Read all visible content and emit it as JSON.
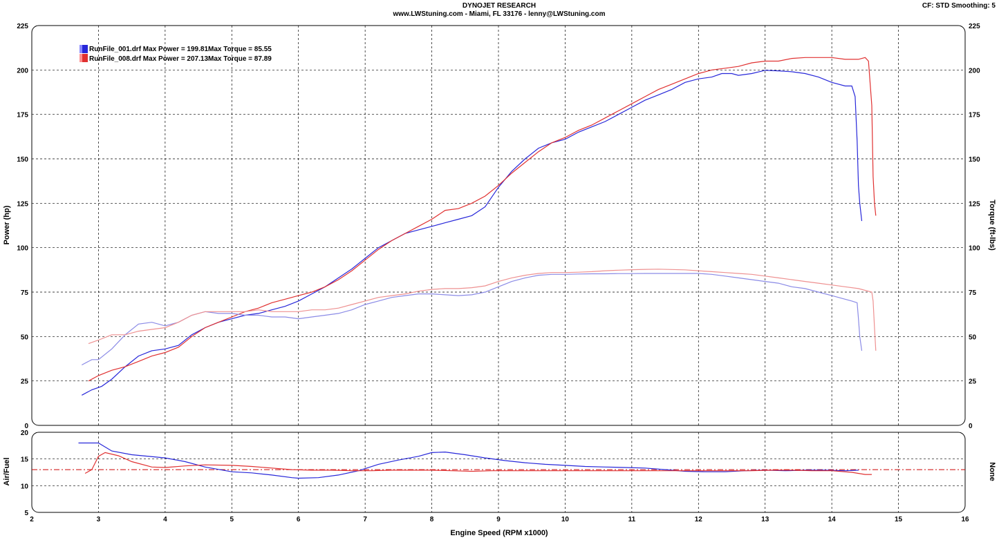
{
  "header": {
    "title": "DYNOJET RESEARCH",
    "subtitle": "www.LWStuning.com - Miami, FL 33176 - lenny@LWStuning.com",
    "settings": "CF: STD  Smoothing: 5"
  },
  "legend": [
    {
      "label": "RunFile_001.drf Max Power = 199.81Max Torque = 85.55",
      "color": "#2626d9"
    },
    {
      "label": "RunFile_008.drf Max Power = 207.13Max Torque = 87.89",
      "color": "#e03030"
    }
  ],
  "chart_data": [
    {
      "type": "line",
      "xlabel": "Engine Speed (RPM x1000)",
      "ylabel": "Power (hp)",
      "y2label": "Torque (ft-lbs)",
      "xlim": [
        2,
        16
      ],
      "ylim": [
        0,
        225
      ],
      "xticks": [
        2,
        3,
        4,
        5,
        6,
        7,
        8,
        9,
        10,
        11,
        12,
        13,
        14,
        15,
        16
      ],
      "yticks": [
        0,
        25,
        50,
        75,
        100,
        125,
        150,
        175,
        200,
        225
      ],
      "grid": true,
      "series": [
        {
          "name": "RunFile_001.drf",
          "measure": "power",
          "color": "#2626d9",
          "x": [
            2.75,
            2.9,
            3.05,
            3.2,
            3.4,
            3.6,
            3.8,
            4.0,
            4.2,
            4.4,
            4.6,
            4.8,
            5.0,
            5.2,
            5.4,
            5.6,
            5.8,
            6.0,
            6.2,
            6.4,
            6.6,
            6.8,
            7.0,
            7.2,
            7.4,
            7.6,
            7.8,
            8.0,
            8.2,
            8.4,
            8.6,
            8.8,
            9.0,
            9.2,
            9.4,
            9.6,
            9.8,
            10.0,
            10.2,
            10.4,
            10.6,
            10.8,
            11.0,
            11.2,
            11.4,
            11.6,
            11.8,
            12.0,
            12.2,
            12.35,
            12.5,
            12.6,
            12.8,
            13.0,
            13.2,
            13.4,
            13.6,
            13.8,
            14.0,
            14.2,
            14.3,
            14.35,
            14.38,
            14.4,
            14.42,
            14.45
          ],
          "values": [
            17,
            20,
            22,
            26,
            33,
            39,
            42,
            43,
            45,
            51,
            55,
            58,
            60,
            62,
            63,
            65,
            67,
            70,
            74,
            78,
            83,
            88,
            94,
            100,
            104,
            108,
            110,
            112,
            114,
            116,
            118,
            123,
            134,
            143,
            150,
            156,
            159,
            161,
            165,
            168,
            171,
            175,
            179,
            183,
            186,
            189,
            193,
            195,
            196,
            198,
            198,
            197,
            198,
            199.8,
            199.5,
            199,
            198,
            196,
            193,
            191,
            191,
            185,
            160,
            135,
            125,
            115
          ]
        },
        {
          "name": "RunFile_008.drf",
          "measure": "power",
          "color": "#e03030",
          "x": [
            2.85,
            3.0,
            3.2,
            3.4,
            3.6,
            3.8,
            4.0,
            4.2,
            4.4,
            4.6,
            4.8,
            5.0,
            5.2,
            5.4,
            5.6,
            5.8,
            6.0,
            6.2,
            6.4,
            6.6,
            6.8,
            7.0,
            7.2,
            7.4,
            7.6,
            7.8,
            8.0,
            8.2,
            8.4,
            8.6,
            8.8,
            9.0,
            9.2,
            9.4,
            9.6,
            9.8,
            10.0,
            10.2,
            10.4,
            10.6,
            10.8,
            11.0,
            11.2,
            11.4,
            11.6,
            11.8,
            12.0,
            12.2,
            12.4,
            12.6,
            12.8,
            13.0,
            13.2,
            13.4,
            13.6,
            13.8,
            14.0,
            14.2,
            14.4,
            14.5,
            14.55,
            14.6,
            14.62,
            14.64,
            14.66
          ],
          "values": [
            25,
            28,
            31,
            33,
            36,
            39,
            41,
            44,
            50,
            55,
            58,
            61,
            64,
            66,
            69,
            71,
            73,
            75,
            78,
            82,
            87,
            93,
            99,
            104,
            108,
            112,
            116,
            121,
            122,
            125,
            129,
            135,
            142,
            148,
            154,
            159,
            162,
            166,
            169,
            173,
            177,
            181,
            185,
            189,
            192,
            195,
            198,
            200,
            201,
            202,
            204,
            205,
            205,
            206.5,
            207,
            207,
            207,
            206,
            206,
            207,
            205,
            180,
            140,
            125,
            118
          ]
        },
        {
          "name": "RunFile_001.drf",
          "measure": "torque",
          "color": "#8a8ae6",
          "x": [
            2.75,
            2.9,
            3.0,
            3.2,
            3.4,
            3.6,
            3.8,
            4.0,
            4.2,
            4.4,
            4.6,
            4.8,
            5.0,
            5.2,
            5.4,
            5.6,
            5.8,
            6.0,
            6.2,
            6.4,
            6.6,
            6.8,
            7.0,
            7.2,
            7.4,
            7.6,
            7.8,
            8.0,
            8.2,
            8.4,
            8.6,
            8.8,
            9.0,
            9.2,
            9.4,
            9.6,
            9.8,
            10.0,
            10.2,
            10.4,
            10.6,
            10.8,
            11.0,
            11.2,
            11.4,
            11.6,
            11.8,
            12.0,
            12.2,
            12.4,
            12.6,
            12.8,
            13.0,
            13.2,
            13.4,
            13.6,
            13.8,
            14.0,
            14.2,
            14.3,
            14.38,
            14.4,
            14.42,
            14.45
          ],
          "values": [
            34,
            37,
            37,
            43,
            51,
            57,
            58,
            56,
            58,
            62,
            64,
            63,
            63,
            62,
            62,
            61,
            61,
            60,
            61,
            62,
            63,
            65,
            68,
            70,
            72,
            73,
            74,
            74,
            73.5,
            73,
            73.5,
            75,
            78,
            81,
            83,
            84.5,
            85,
            85,
            85.2,
            85.3,
            85.3,
            85.4,
            85.4,
            85.5,
            85.5,
            85.5,
            85.5,
            85.5,
            85,
            84,
            83,
            82,
            81,
            80,
            78,
            77,
            75,
            73,
            71,
            70,
            69,
            60,
            50,
            42
          ]
        },
        {
          "name": "RunFile_008.drf",
          "measure": "torque",
          "color": "#ee9090",
          "x": [
            2.85,
            3.0,
            3.2,
            3.4,
            3.6,
            3.8,
            4.0,
            4.2,
            4.4,
            4.6,
            4.8,
            5.0,
            5.2,
            5.4,
            5.6,
            5.8,
            6.0,
            6.2,
            6.4,
            6.6,
            6.8,
            7.0,
            7.2,
            7.4,
            7.6,
            7.8,
            8.0,
            8.2,
            8.4,
            8.6,
            8.8,
            9.0,
            9.2,
            9.4,
            9.6,
            9.8,
            10.0,
            10.2,
            10.4,
            10.6,
            10.8,
            11.0,
            11.2,
            11.4,
            11.6,
            11.8,
            12.0,
            12.2,
            12.4,
            12.6,
            12.8,
            13.0,
            13.2,
            13.4,
            13.6,
            13.8,
            14.0,
            14.2,
            14.4,
            14.6,
            14.62,
            14.64,
            14.66
          ],
          "values": [
            46,
            48,
            51,
            51,
            53,
            54,
            55,
            58,
            62,
            64,
            64,
            64,
            64,
            65,
            64,
            64,
            64,
            65,
            65,
            66,
            68,
            70,
            72,
            73,
            74,
            75.5,
            76.5,
            77,
            77,
            77.5,
            78.5,
            81,
            83,
            84.5,
            85.5,
            86,
            86,
            86.2,
            86.5,
            87,
            87.3,
            87.6,
            87.8,
            87.89,
            87.7,
            87.5,
            87,
            86.5,
            86,
            85.5,
            85,
            84,
            83,
            82,
            81,
            80,
            79,
            78,
            77,
            75,
            70,
            55,
            42
          ]
        }
      ]
    },
    {
      "type": "line",
      "ylabel": "Air/Fuel",
      "y2label": "None",
      "xlim": [
        2,
        16
      ],
      "ylim": [
        5,
        20
      ],
      "yticks": [
        5,
        10,
        15,
        20
      ],
      "xticks": [
        2,
        3,
        4,
        5,
        6,
        7,
        8,
        9,
        10,
        11,
        12,
        13,
        14,
        15,
        16
      ],
      "grid": true,
      "reference_line": 13,
      "series": [
        {
          "name": "RunFile_001.drf",
          "color": "#2626d9",
          "x": [
            2.7,
            3.0,
            3.2,
            3.5,
            4.0,
            4.3,
            4.6,
            5.0,
            5.3,
            5.6,
            5.9,
            6.0,
            6.3,
            6.6,
            6.9,
            7.2,
            7.5,
            7.8,
            8.0,
            8.2,
            8.5,
            8.8,
            9.1,
            9.4,
            9.7,
            10.0,
            10.3,
            10.6,
            10.9,
            11.2,
            11.5,
            11.8,
            12.1,
            12.4,
            12.7,
            13.0,
            13.3,
            13.6,
            13.9,
            14.2,
            14.4
          ],
          "values": [
            18,
            18,
            16.5,
            15.8,
            15.2,
            14.5,
            13.5,
            12.6,
            12.4,
            12.0,
            11.5,
            11.4,
            11.5,
            12.0,
            12.8,
            14.0,
            14.8,
            15.5,
            16.2,
            16.3,
            15.8,
            15.2,
            14.7,
            14.3,
            14.0,
            13.8,
            13.6,
            13.5,
            13.4,
            13.3,
            13.0,
            12.7,
            12.6,
            12.6,
            12.8,
            12.9,
            12.8,
            12.9,
            12.9,
            12.8,
            12.9
          ]
        },
        {
          "name": "RunFile_008.drf",
          "color": "#e03030",
          "x": [
            2.8,
            2.9,
            3.0,
            3.1,
            3.3,
            3.5,
            3.8,
            4.0,
            4.3,
            4.6,
            5.0,
            5.3,
            5.6,
            5.9,
            6.2,
            6.5,
            6.8,
            7.1,
            7.4,
            7.7,
            8.0,
            8.3,
            8.6,
            8.9,
            9.2,
            9.5,
            9.8,
            10.1,
            10.4,
            10.7,
            11.0,
            11.3,
            11.6,
            11.9,
            12.2,
            12.5,
            12.8,
            13.1,
            13.4,
            13.7,
            14.0,
            14.3,
            14.5,
            14.6
          ],
          "values": [
            12.3,
            13.0,
            15.5,
            16.2,
            15.6,
            14.5,
            13.5,
            13.4,
            13.7,
            13.9,
            13.8,
            13.6,
            13.3,
            13.0,
            12.9,
            12.9,
            12.8,
            12.8,
            12.9,
            12.9,
            12.9,
            12.8,
            12.7,
            12.8,
            12.8,
            12.8,
            12.8,
            12.8,
            12.8,
            12.8,
            12.8,
            12.8,
            12.8,
            12.8,
            12.8,
            12.8,
            12.8,
            12.9,
            12.9,
            12.8,
            12.8,
            12.5,
            12.1,
            12.1
          ]
        }
      ]
    }
  ]
}
